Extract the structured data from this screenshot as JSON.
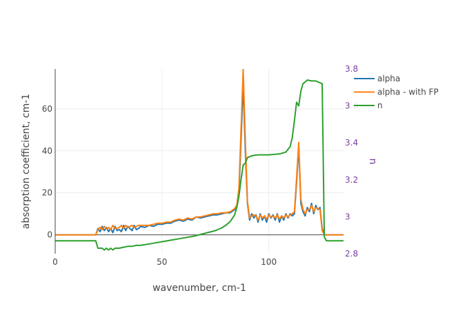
{
  "chart_data": {
    "type": "line",
    "xlabel": "wavenumber, cm-1",
    "ylabel": "absorption coefficient, cm-1",
    "y2label": "n",
    "xlim": [
      0,
      135
    ],
    "ylim": [
      -9,
      79
    ],
    "y2lim": [
      2.8,
      3.8
    ],
    "xticks": [
      0,
      50,
      100
    ],
    "yticks": [
      0,
      20,
      40,
      60
    ],
    "y2ticks": [
      2.8,
      3.0,
      3.2,
      3.4,
      3.6,
      3.8
    ],
    "y2tick_labels": [
      "2.8",
      "3",
      "3.2",
      "3.4",
      "3.6",
      "3.8"
    ],
    "grid": true,
    "legend_position": "top-right",
    "colors": {
      "alpha": "#1f77b4",
      "alpha_fp": "#ff7f0e",
      "n": "#2ca02c",
      "right_axis": "#7a3ea0"
    },
    "series": [
      {
        "name": "alpha",
        "axis": "y",
        "color": "#1f77b4",
        "x": [
          0,
          18,
          19,
          20,
          21,
          22,
          23,
          24,
          25,
          26,
          27,
          28,
          29,
          30,
          31,
          32,
          33,
          34,
          35,
          36,
          37,
          38,
          39,
          40,
          42,
          44,
          46,
          48,
          50,
          52,
          54,
          56,
          58,
          60,
          62,
          64,
          66,
          68,
          70,
          72,
          74,
          76,
          78,
          80,
          82,
          84,
          85,
          86,
          87,
          88,
          89,
          90,
          91,
          92,
          93,
          94,
          95,
          96,
          97,
          98,
          99,
          100,
          101,
          102,
          103,
          104,
          105,
          106,
          107,
          108,
          109,
          110,
          111,
          112,
          113,
          114,
          115,
          116,
          117,
          118,
          119,
          120,
          121,
          122,
          123,
          124,
          125,
          126,
          135
        ],
        "y": [
          0,
          0,
          0,
          3,
          1.5,
          4,
          2,
          3.5,
          1.5,
          3,
          1,
          4,
          2,
          2.5,
          1.5,
          4.5,
          2,
          4,
          3,
          2,
          4.5,
          2.5,
          3,
          4,
          3.5,
          4.5,
          4,
          5,
          5,
          5.5,
          5.5,
          6.5,
          7,
          6.5,
          7.5,
          7,
          8.5,
          8,
          8.5,
          9,
          9.5,
          9.5,
          10,
          10.5,
          10.5,
          12,
          13,
          20,
          45,
          72,
          40,
          15,
          7,
          10,
          8,
          9.5,
          6,
          10,
          7,
          9,
          6,
          10,
          8,
          9.5,
          7,
          10,
          6,
          9,
          7,
          10,
          8,
          10,
          9,
          10,
          25,
          42,
          15,
          11,
          9,
          13,
          11,
          15,
          10,
          14,
          12,
          13,
          3,
          0,
          0
        ]
      },
      {
        "name": "alpha - with FP",
        "axis": "y",
        "color": "#ff7f0e",
        "x": [
          0,
          18,
          19,
          20,
          21,
          22,
          23,
          24,
          25,
          26,
          27,
          28,
          29,
          30,
          31,
          32,
          33,
          34,
          35,
          36,
          37,
          38,
          39,
          40,
          42,
          44,
          46,
          48,
          50,
          52,
          54,
          56,
          58,
          60,
          62,
          64,
          66,
          68,
          70,
          72,
          74,
          76,
          78,
          80,
          82,
          84,
          85,
          86,
          87,
          88,
          89,
          90,
          91,
          92,
          93,
          94,
          95,
          96,
          97,
          98,
          99,
          100,
          101,
          102,
          103,
          104,
          105,
          106,
          107,
          108,
          109,
          110,
          111,
          112,
          113,
          114,
          115,
          116,
          117,
          118,
          119,
          120,
          121,
          122,
          123,
          124,
          125,
          126,
          135
        ],
        "y": [
          0,
          0,
          0,
          2.5,
          3.5,
          2.5,
          4,
          3,
          3.5,
          2.5,
          4.5,
          3,
          3,
          3.5,
          4.5,
          3,
          4.5,
          3.5,
          4,
          4.5,
          3.5,
          4,
          4.5,
          4.5,
          4.5,
          4.5,
          5,
          5.5,
          5.5,
          6,
          6,
          7,
          7.5,
          7,
          8,
          7.5,
          8.5,
          8.5,
          9,
          9.5,
          10,
          10,
          10.5,
          10.5,
          11,
          12.5,
          14,
          22,
          50,
          79,
          45,
          16,
          8,
          9,
          9.5,
          9,
          7,
          9.5,
          8,
          9,
          7.5,
          9.5,
          8.5,
          9,
          8,
          9.5,
          7.5,
          9,
          8,
          9.5,
          8.5,
          9.5,
          10,
          11,
          27,
          44,
          17,
          12,
          10,
          12,
          12,
          14,
          11,
          13,
          12.5,
          12,
          2,
          0,
          0
        ]
      },
      {
        "name": "n",
        "axis": "y2",
        "color": "#2ca02c",
        "x": [
          0,
          18,
          19,
          20,
          21,
          22,
          23,
          24,
          25,
          26,
          27,
          28,
          29,
          30,
          32,
          34,
          36,
          38,
          40,
          45,
          50,
          55,
          60,
          65,
          70,
          75,
          78,
          80,
          82,
          84,
          85,
          86,
          87,
          88,
          89,
          90,
          91,
          92,
          93,
          95,
          100,
          105,
          108,
          110,
          111,
          112,
          113,
          114,
          115,
          116,
          117,
          118,
          120,
          122,
          124,
          125,
          125.5,
          126,
          127,
          135
        ],
        "y": [
          2.87,
          2.87,
          2.87,
          2.83,
          2.83,
          2.83,
          2.82,
          2.83,
          2.82,
          2.83,
          2.82,
          2.83,
          2.83,
          2.83,
          2.835,
          2.84,
          2.84,
          2.845,
          2.845,
          2.855,
          2.865,
          2.875,
          2.885,
          2.895,
          2.91,
          2.925,
          2.94,
          2.955,
          2.975,
          3.01,
          3.05,
          3.11,
          3.2,
          3.28,
          3.29,
          3.32,
          3.325,
          3.33,
          3.332,
          3.335,
          3.335,
          3.34,
          3.35,
          3.38,
          3.43,
          3.52,
          3.62,
          3.6,
          3.68,
          3.72,
          3.73,
          3.74,
          3.735,
          3.735,
          3.725,
          3.72,
          3.3,
          2.89,
          2.87,
          2.87
        ]
      }
    ]
  },
  "legend": [
    {
      "label": "alpha",
      "color": "#1f77b4"
    },
    {
      "label": "alpha - with FP",
      "color": "#ff7f0e"
    },
    {
      "label": "n",
      "color": "#2ca02c"
    }
  ]
}
